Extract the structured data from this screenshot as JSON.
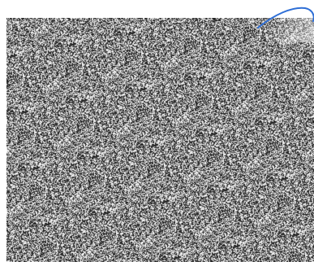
{
  "image": {
    "type": "photo-noise",
    "noise_dark_color": "#1a1a1a",
    "noise_mid_color": "#7a7a7a",
    "noise_light_color": "#ffffff",
    "background_color": "#ffffff",
    "accent_curve_color": "#2f6fd6"
  }
}
